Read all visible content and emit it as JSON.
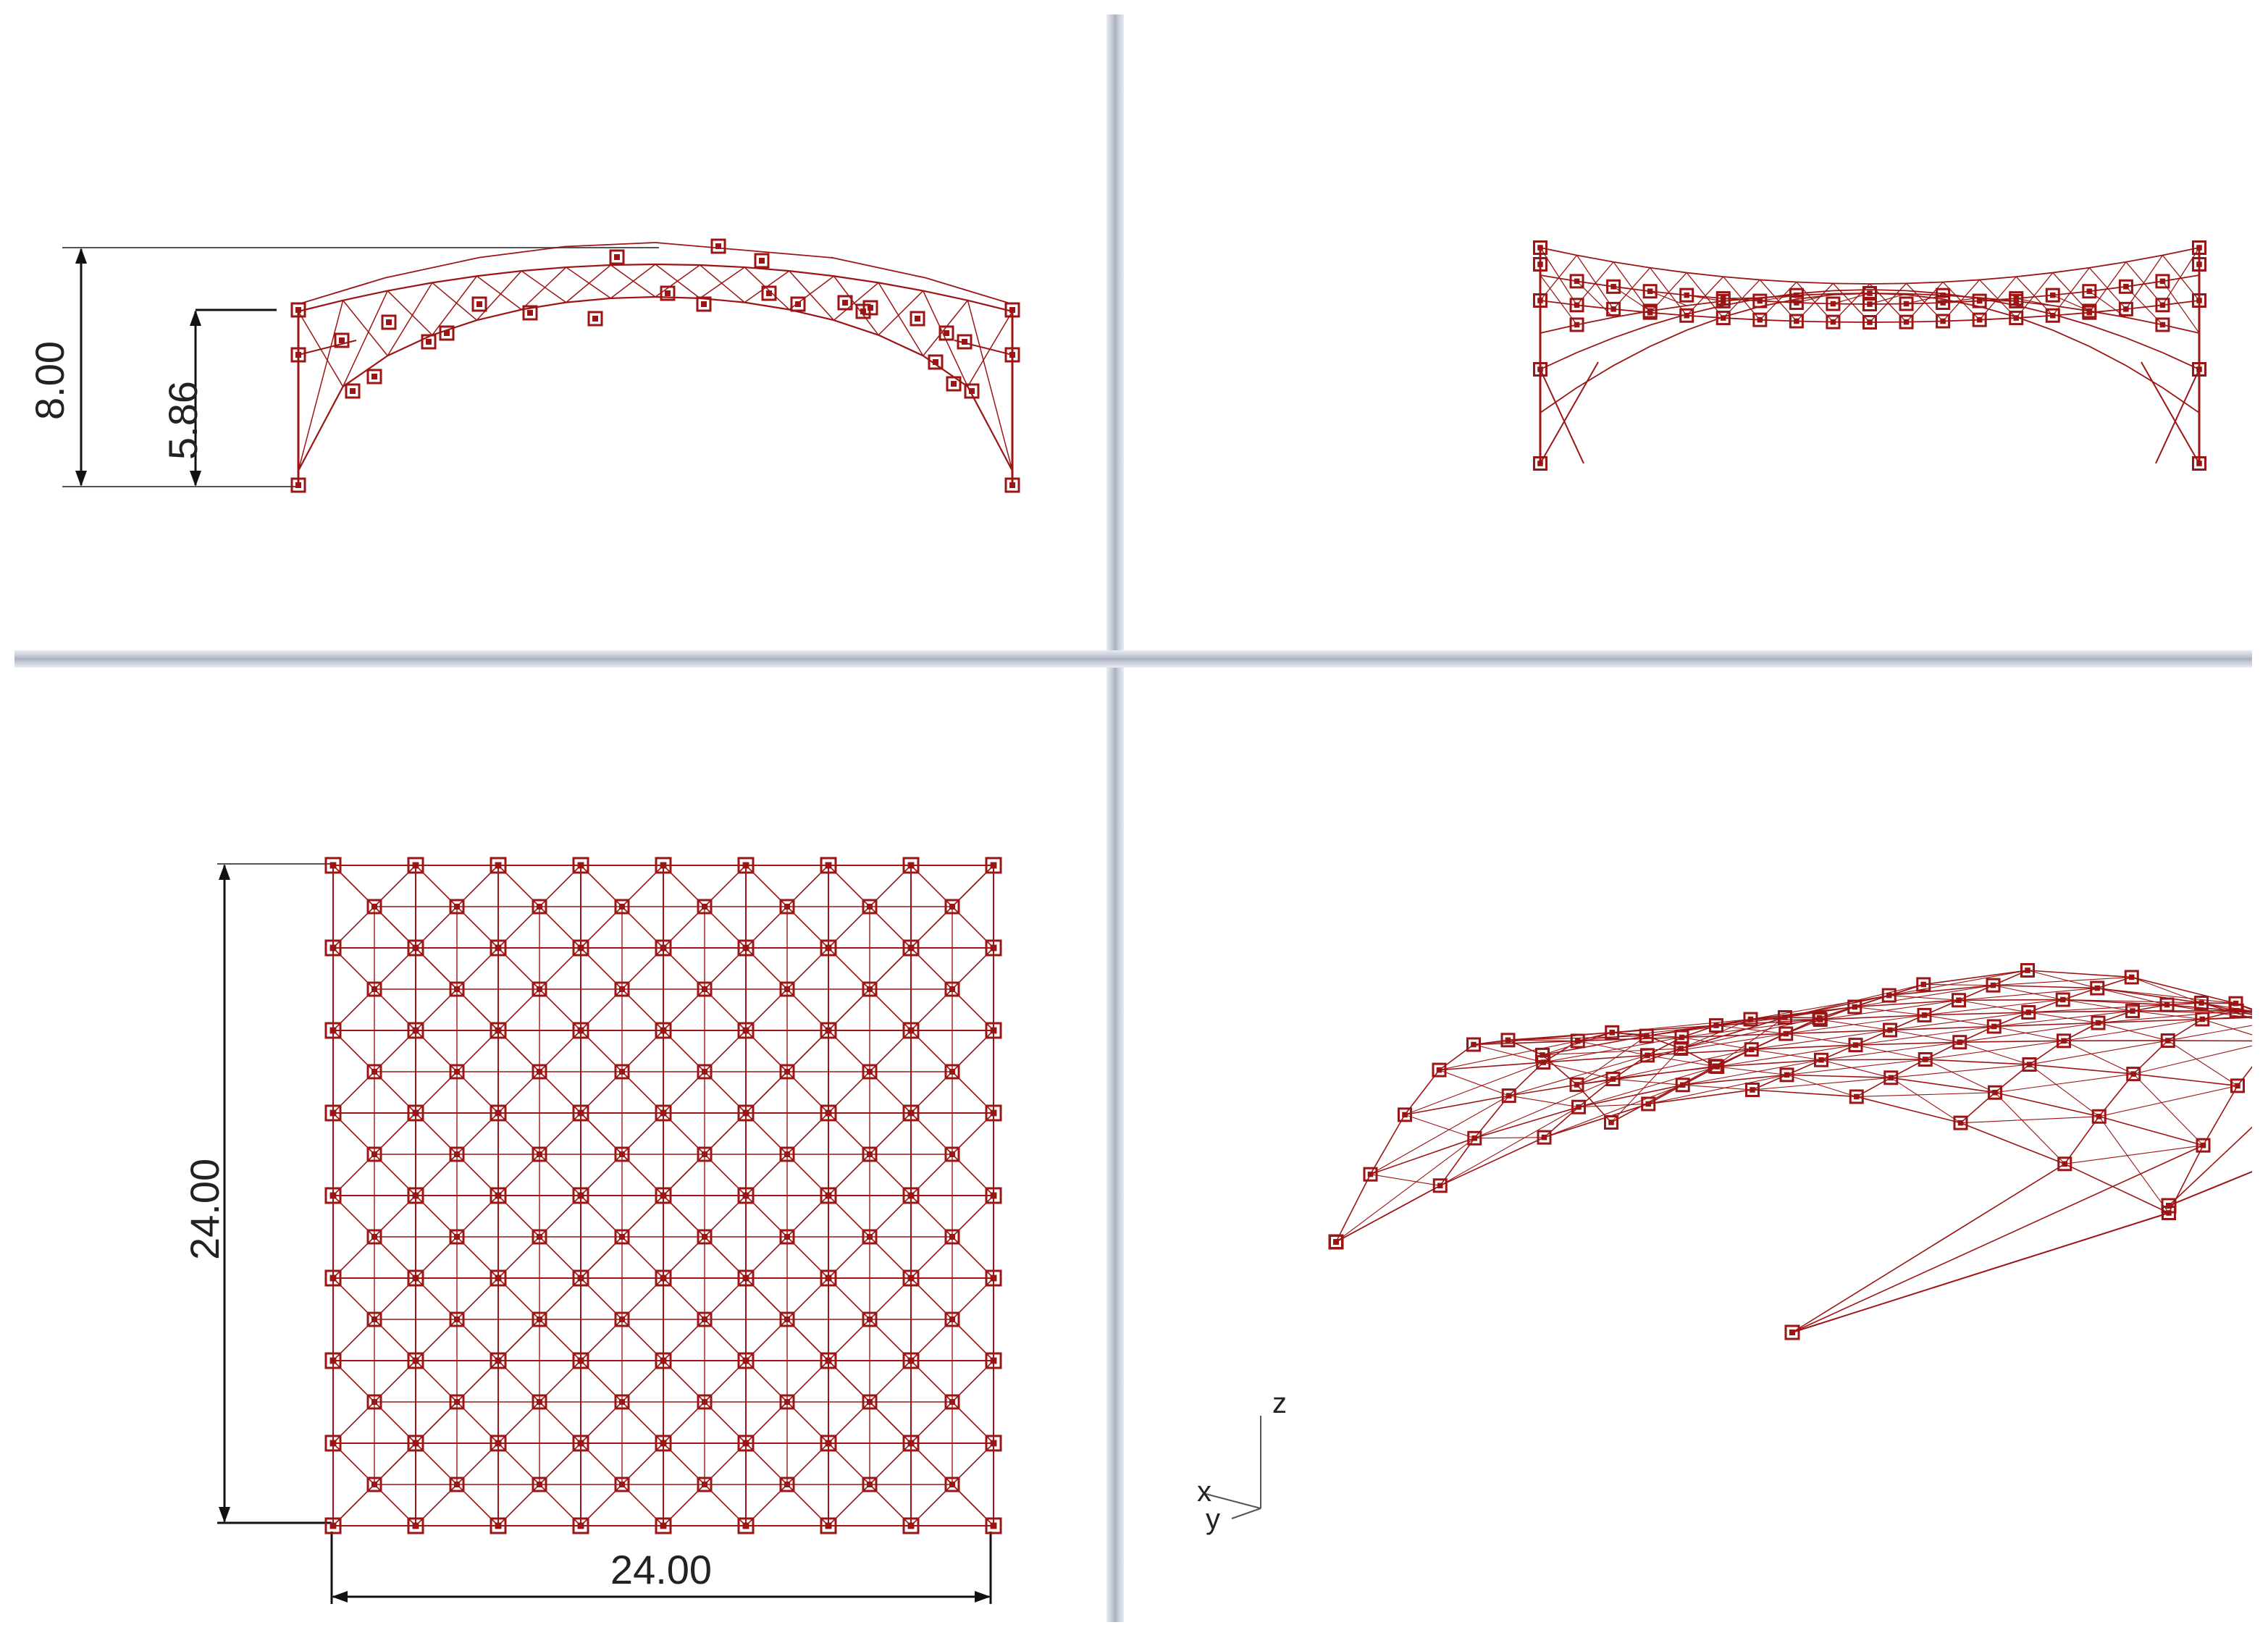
{
  "viewports": {
    "front": {
      "dimensions": {
        "overall_height": "8.00",
        "side_height": "5.86"
      }
    },
    "right": {},
    "top": {
      "dimensions": {
        "side_length_y": "24.00",
        "side_length_x": "24.00"
      }
    },
    "perspective": {
      "axis_labels": {
        "x": "x",
        "y": "y",
        "z": "z"
      }
    }
  },
  "colors": {
    "structure": "#9b1515",
    "dimension_line": "#1a1a1a",
    "background": "#ffffff",
    "divider": "#b7bdca"
  }
}
